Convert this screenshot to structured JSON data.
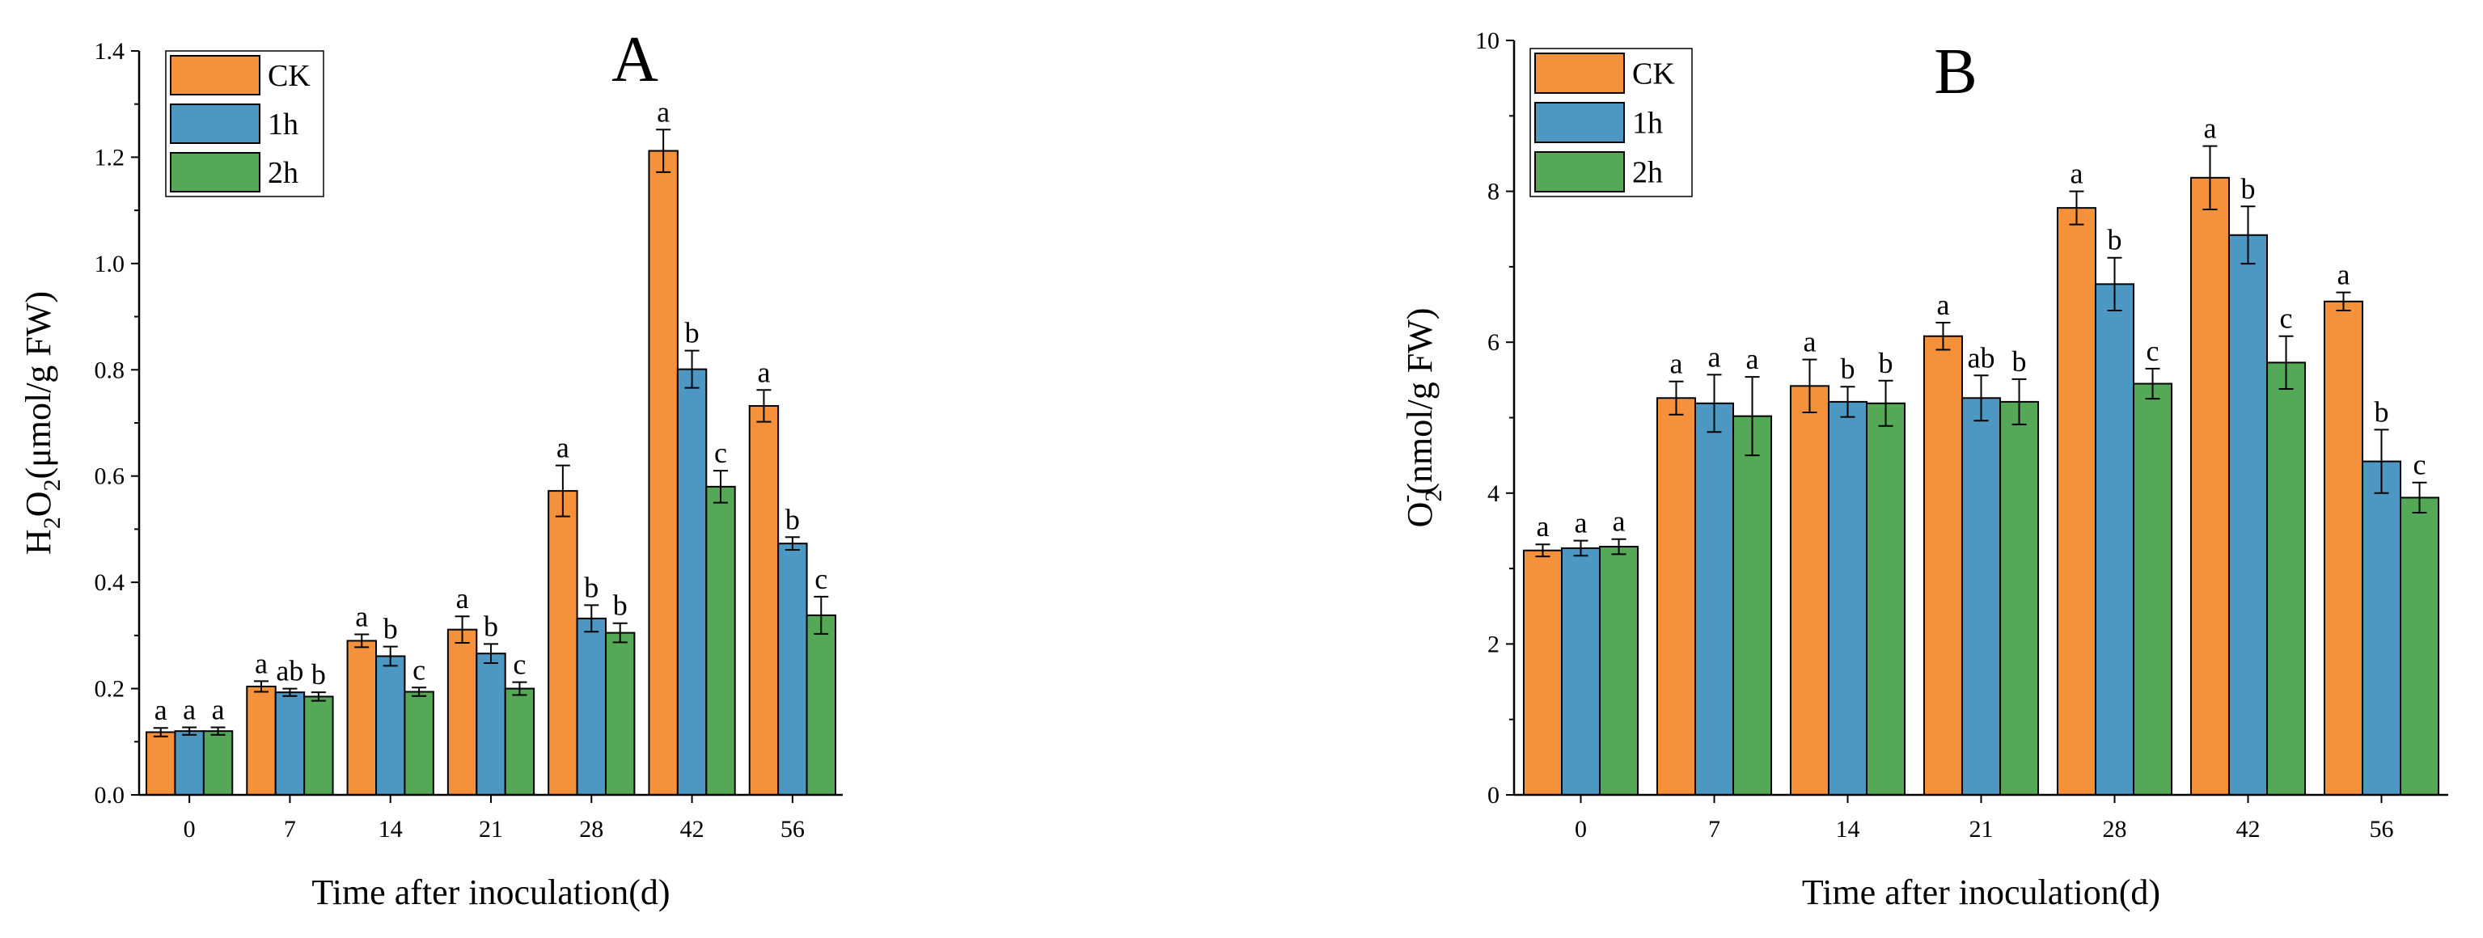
{
  "chart_data": [
    {
      "type": "bar",
      "panel_label": "A",
      "title": "",
      "xlabel": "Time after inoculation(d)",
      "ylabel_parts": [
        "H",
        "2",
        "O",
        "2",
        "(μmol/g FW)"
      ],
      "categories": [
        "0",
        "7",
        "14",
        "21",
        "28",
        "42",
        "56"
      ],
      "ylim": [
        0,
        1.4
      ],
      "yticks": [
        "0.0",
        "0.2",
        "0.4",
        "0.6",
        "0.8",
        "1.0",
        "1.2",
        "1.4"
      ],
      "legend_position": "top-left",
      "series": [
        {
          "name": "CK",
          "color": "#F5913A",
          "values": [
            0.118,
            0.204,
            0.29,
            0.311,
            0.572,
            1.212,
            0.732
          ],
          "errors": [
            0.008,
            0.01,
            0.012,
            0.025,
            0.048,
            0.04,
            0.03
          ],
          "letters": [
            "a",
            "a",
            "a",
            "a",
            "a",
            "a",
            "a"
          ]
        },
        {
          "name": "1h",
          "color": "#4D98C3",
          "values": [
            0.12,
            0.193,
            0.261,
            0.266,
            0.332,
            0.801,
            0.473
          ],
          "errors": [
            0.007,
            0.007,
            0.018,
            0.018,
            0.025,
            0.035,
            0.012
          ],
          "letters": [
            "a",
            "ab",
            "b",
            "b",
            "b",
            "b",
            "b"
          ]
        },
        {
          "name": "2h",
          "color": "#55A956",
          "values": [
            0.12,
            0.185,
            0.194,
            0.2,
            0.305,
            0.58,
            0.338
          ],
          "errors": [
            0.007,
            0.008,
            0.008,
            0.012,
            0.018,
            0.03,
            0.035
          ],
          "letters": [
            "a",
            "b",
            "c",
            "c",
            "b",
            "c",
            "c"
          ]
        }
      ]
    },
    {
      "type": "bar",
      "panel_label": "B",
      "title": "",
      "xlabel": "Time after inoculation(d)",
      "ylabel_parts": [
        "O",
        "2",
        "-",
        "(nmol/g FW)"
      ],
      "categories": [
        "0",
        "7",
        "14",
        "21",
        "28",
        "42",
        "56"
      ],
      "ylim": [
        0,
        10
      ],
      "yticks": [
        "0",
        "2",
        "4",
        "6",
        "8",
        "10"
      ],
      "legend_position": "top-left",
      "series": [
        {
          "name": "CK",
          "color": "#F5913A",
          "values": [
            3.24,
            5.26,
            5.42,
            6.08,
            7.78,
            8.18,
            6.54
          ],
          "errors": [
            0.08,
            0.22,
            0.35,
            0.18,
            0.22,
            0.42,
            0.12
          ],
          "letters": [
            "a",
            "a",
            "a",
            "a",
            "a",
            "a",
            "a"
          ]
        },
        {
          "name": "1h",
          "color": "#4D98C3",
          "values": [
            3.27,
            5.19,
            5.21,
            5.26,
            6.77,
            7.42,
            4.42
          ],
          "errors": [
            0.1,
            0.38,
            0.2,
            0.3,
            0.35,
            0.38,
            0.42
          ],
          "letters": [
            "a",
            "a",
            "b",
            "ab",
            "b",
            "b",
            "b"
          ]
        },
        {
          "name": "2h",
          "color": "#55A956",
          "values": [
            3.29,
            5.02,
            5.19,
            5.21,
            5.45,
            5.73,
            3.94
          ],
          "errors": [
            0.1,
            0.52,
            0.3,
            0.3,
            0.2,
            0.35,
            0.2
          ],
          "letters": [
            "a",
            "a",
            "b",
            "b",
            "c",
            "c",
            "c"
          ]
        }
      ]
    }
  ]
}
